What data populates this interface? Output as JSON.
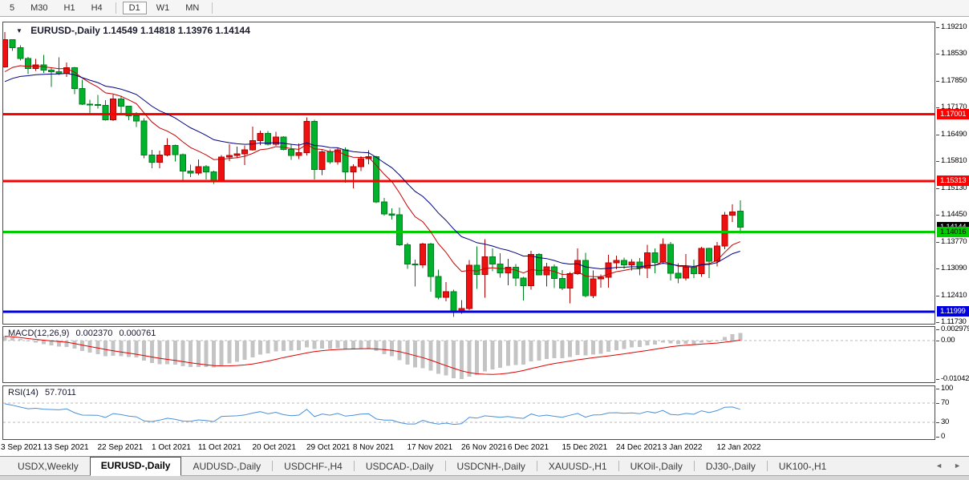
{
  "toolbar": {
    "periods": [
      {
        "label": "5"
      },
      {
        "label": "M30"
      },
      {
        "label": "H1"
      },
      {
        "label": "H4"
      },
      {
        "divider": true
      },
      {
        "label": "D1",
        "active": true
      },
      {
        "label": "W1"
      },
      {
        "label": "MN"
      },
      {
        "divider": true
      }
    ]
  },
  "window": {
    "title": {
      "symbol_period": "EURUSD-,Daily",
      "open": "1.14549",
      "high": "1.14818",
      "low": "1.13976",
      "close": "1.14144"
    }
  },
  "chart_data": {
    "type": "candlestick",
    "symbol": "EURUSD-,Daily",
    "ylim": [
      1.11691,
      1.19332
    ],
    "bar_spacing": 9.65,
    "colors": {
      "bull": "#ee1111",
      "bull_edge": "#b00000",
      "bear": "#00b22c",
      "bear_edge": "#007d1e",
      "ma_fast": "#c80000",
      "ma_slow": "#000080"
    },
    "candles": [
      [
        1.1821,
        1.1909,
        1.1818,
        1.189
      ],
      [
        1.189,
        1.1891,
        1.1861,
        1.1869
      ],
      [
        1.1869,
        1.1875,
        1.1837,
        1.1842
      ],
      [
        1.1842,
        1.1846,
        1.1802,
        1.1816
      ],
      [
        1.1816,
        1.1841,
        1.181,
        1.1825
      ],
      [
        1.1825,
        1.1851,
        1.1805,
        1.1812
      ],
      [
        1.1812,
        1.1818,
        1.177,
        1.1808
      ],
      [
        1.1808,
        1.1845,
        1.18,
        1.1804
      ],
      [
        1.1804,
        1.1832,
        1.1795,
        1.1818
      ],
      [
        1.1818,
        1.182,
        1.1751,
        1.1766
      ],
      [
        1.1766,
        1.1788,
        1.1724,
        1.1726
      ],
      [
        1.1726,
        1.1737,
        1.17,
        1.1725
      ],
      [
        1.1725,
        1.1749,
        1.1715,
        1.1723
      ],
      [
        1.1723,
        1.1736,
        1.1684,
        1.1686
      ],
      [
        1.1686,
        1.175,
        1.1683,
        1.1739
      ],
      [
        1.1739,
        1.1747,
        1.1701,
        1.1721
      ],
      [
        1.1721,
        1.1722,
        1.1685,
        1.1696
      ],
      [
        1.1696,
        1.1706,
        1.1668,
        1.1683
      ],
      [
        1.1683,
        1.169,
        1.1589,
        1.1597
      ],
      [
        1.1597,
        1.161,
        1.1563,
        1.1579
      ],
      [
        1.1579,
        1.1608,
        1.1563,
        1.1597
      ],
      [
        1.1597,
        1.164,
        1.1594,
        1.1621
      ],
      [
        1.1621,
        1.1623,
        1.1581,
        1.1598
      ],
      [
        1.1598,
        1.1601,
        1.1529,
        1.1556
      ],
      [
        1.1556,
        1.1572,
        1.1541,
        1.1551
      ],
      [
        1.1551,
        1.1586,
        1.1546,
        1.1567
      ],
      [
        1.1567,
        1.1571,
        1.1535,
        1.1554
      ],
      [
        1.1554,
        1.1557,
        1.1524,
        1.1531
      ],
      [
        1.1531,
        1.1597,
        1.1528,
        1.1592
      ],
      [
        1.1592,
        1.1624,
        1.1582,
        1.1596
      ],
      [
        1.1596,
        1.1618,
        1.1589,
        1.16
      ],
      [
        1.16,
        1.1621,
        1.1571,
        1.161
      ],
      [
        1.161,
        1.1669,
        1.1608,
        1.1633
      ],
      [
        1.1633,
        1.1659,
        1.1622,
        1.1652
      ],
      [
        1.1652,
        1.1658,
        1.1621,
        1.1624
      ],
      [
        1.1624,
        1.1656,
        1.162,
        1.1643
      ],
      [
        1.1643,
        1.1645,
        1.1609,
        1.1611
      ],
      [
        1.1611,
        1.1625,
        1.1585,
        1.1596
      ],
      [
        1.1596,
        1.1626,
        1.1587,
        1.1603
      ],
      [
        1.1603,
        1.1692,
        1.1596,
        1.1682
      ],
      [
        1.1682,
        1.1686,
        1.1535,
        1.156
      ],
      [
        1.156,
        1.1609,
        1.1546,
        1.1605
      ],
      [
        1.1605,
        1.1611,
        1.1575,
        1.158
      ],
      [
        1.158,
        1.1616,
        1.1572,
        1.161
      ],
      [
        1.161,
        1.1616,
        1.1527,
        1.1554
      ],
      [
        1.1554,
        1.1573,
        1.1513,
        1.1567
      ],
      [
        1.1567,
        1.1594,
        1.1556,
        1.1588
      ],
      [
        1.1588,
        1.1609,
        1.1574,
        1.1593
      ],
      [
        1.1593,
        1.1595,
        1.1475,
        1.1478
      ],
      [
        1.1478,
        1.1488,
        1.1443,
        1.1448
      ],
      [
        1.1448,
        1.1462,
        1.1433,
        1.1445
      ],
      [
        1.1445,
        1.1464,
        1.1366,
        1.1369
      ],
      [
        1.1369,
        1.1374,
        1.1308,
        1.132
      ],
      [
        1.132,
        1.1332,
        1.1264,
        1.1318
      ],
      [
        1.1318,
        1.1374,
        1.131,
        1.1371
      ],
      [
        1.1371,
        1.1374,
        1.125,
        1.1289
      ],
      [
        1.1289,
        1.1306,
        1.1231,
        1.1236
      ],
      [
        1.1236,
        1.1275,
        1.1226,
        1.125
      ],
      [
        1.125,
        1.1255,
        1.1186,
        1.1199
      ],
      [
        1.1199,
        1.1229,
        1.1194,
        1.1208
      ],
      [
        1.1208,
        1.1331,
        1.1204,
        1.1317
      ],
      [
        1.1317,
        1.1365,
        1.1258,
        1.1294
      ],
      [
        1.1294,
        1.1383,
        1.1235,
        1.1339
      ],
      [
        1.1339,
        1.136,
        1.1302,
        1.132
      ],
      [
        1.132,
        1.1348,
        1.1286,
        1.1298
      ],
      [
        1.1298,
        1.1334,
        1.1267,
        1.1312
      ],
      [
        1.1312,
        1.132,
        1.1265,
        1.1285
      ],
      [
        1.1285,
        1.1288,
        1.1228,
        1.1266
      ],
      [
        1.1266,
        1.1354,
        1.1255,
        1.1345
      ],
      [
        1.1345,
        1.1348,
        1.1292,
        1.1293
      ],
      [
        1.1293,
        1.1324,
        1.1264,
        1.1313
      ],
      [
        1.1313,
        1.1319,
        1.126,
        1.1284
      ],
      [
        1.1284,
        1.1305,
        1.1254,
        1.126
      ],
      [
        1.126,
        1.13,
        1.1221,
        1.1296
      ],
      [
        1.1296,
        1.136,
        1.1293,
        1.133
      ],
      [
        1.133,
        1.1349,
        1.1236,
        1.124
      ],
      [
        1.124,
        1.1304,
        1.1234,
        1.1283
      ],
      [
        1.1283,
        1.1294,
        1.1261,
        1.1287
      ],
      [
        1.1287,
        1.1344,
        1.1261,
        1.1324
      ],
      [
        1.1324,
        1.1342,
        1.1307,
        1.133
      ],
      [
        1.133,
        1.1337,
        1.1308,
        1.1318
      ],
      [
        1.1318,
        1.1333,
        1.1304,
        1.1326
      ],
      [
        1.1326,
        1.1336,
        1.1292,
        1.131
      ],
      [
        1.131,
        1.1369,
        1.1285,
        1.1349
      ],
      [
        1.1349,
        1.136,
        1.1297,
        1.1325
      ],
      [
        1.1325,
        1.1386,
        1.1321,
        1.137
      ],
      [
        1.137,
        1.1376,
        1.1279,
        1.1297
      ],
      [
        1.1297,
        1.1323,
        1.1272,
        1.1285
      ],
      [
        1.1285,
        1.1346,
        1.1279,
        1.1312
      ],
      [
        1.1312,
        1.1332,
        1.1285,
        1.1296
      ],
      [
        1.1296,
        1.1364,
        1.1288,
        1.136
      ],
      [
        1.136,
        1.1362,
        1.1285,
        1.1328
      ],
      [
        1.1328,
        1.1376,
        1.1314,
        1.1366
      ],
      [
        1.1366,
        1.1453,
        1.1358,
        1.1444
      ],
      [
        1.1444,
        1.1472,
        1.1427,
        1.1453
      ],
      [
        1.14549,
        1.14818,
        1.13976,
        1.14144
      ]
    ],
    "moving_averages": [
      {
        "period": 10,
        "seed": 1.179,
        "color": "#c80000"
      },
      {
        "period": 20,
        "seed": 1.1772,
        "color": "#000080"
      }
    ],
    "hlines": [
      {
        "price": 1.17001,
        "color": "#ff0000",
        "width": 3
      },
      {
        "price": 1.15313,
        "color": "#ff0000",
        "width": 3
      },
      {
        "price": 1.14016,
        "color": "#00cc00",
        "width": 3
      },
      {
        "price": 1.11999,
        "color": "#0000dd",
        "width": 3
      }
    ],
    "axis_boxes": [
      {
        "value": 1.17001,
        "text": "1.17001",
        "bg": "#ff0000",
        "fg": "#ffffff"
      },
      {
        "value": 1.15313,
        "text": "1.15313",
        "bg": "#ff0000",
        "fg": "#ffffff"
      },
      {
        "value": 1.14144,
        "text": "1.14144",
        "bg": "#000000",
        "fg": "#ffffff"
      },
      {
        "value": 1.14016,
        "text": "1.14016",
        "bg": "#00cc00",
        "fg": "#000000"
      },
      {
        "value": 1.11999,
        "text": "1.11999",
        "bg": "#0000dd",
        "fg": "#ffffff"
      }
    ],
    "price_axis_ticks": [
      1.1921,
      1.1853,
      1.1785,
      1.1717,
      1.1649,
      1.1581,
      1.1513,
      1.1445,
      1.1377,
      1.1309,
      1.1241,
      1.1173
    ],
    "date_labels": [
      {
        "text": "3 Sep 2021",
        "bar": 0
      },
      {
        "text": "13 Sep 2021",
        "bar": 6
      },
      {
        "text": "22 Sep 2021",
        "bar": 13
      },
      {
        "text": "1 Oct 2021",
        "bar": 20
      },
      {
        "text": "11 Oct 2021",
        "bar": 26
      },
      {
        "text": "20 Oct 2021",
        "bar": 33
      },
      {
        "text": "29 Oct 2021",
        "bar": 40
      },
      {
        "text": "8 Nov 2021",
        "bar": 46
      },
      {
        "text": "17 Nov 2021",
        "bar": 53
      },
      {
        "text": "26 Nov 2021",
        "bar": 60
      },
      {
        "text": "6 Dec 2021",
        "bar": 66
      },
      {
        "text": "15 Dec 2021",
        "bar": 73
      },
      {
        "text": "24 Dec 2021",
        "bar": 80
      },
      {
        "text": "3 Jan 2022",
        "bar": 86
      },
      {
        "text": "12 Jan 2022",
        "bar": 93
      }
    ],
    "macd": {
      "label": "MACD(12,26,9)",
      "value_main": "0.002370",
      "value_signal": "0.000761",
      "fast": 12,
      "slow": 26,
      "signal_period": 9,
      "seed_fast": 1.19,
      "seed_slow": 1.1887,
      "hist_color": "#c4c4c4",
      "signal_color": "#e00000",
      "axis": {
        "max": 0.002979,
        "min": -0.010422,
        "max_label": "0.002979",
        "zero_label": "0.00",
        "min_label": "-0.010422"
      }
    },
    "rsi": {
      "label": "RSI(14)",
      "value": "57.7011",
      "period": 14,
      "seed_gain": 0.0026,
      "seed_loss": 0.0012,
      "levels": [
        70,
        30
      ],
      "axis_labels": [
        100,
        70,
        30,
        0
      ],
      "color": "#4a90d9",
      "range": [
        0,
        100
      ]
    }
  },
  "tabs": {
    "items": [
      {
        "label": "USDX,Weekly"
      },
      {
        "label": "EURUSD-,Daily",
        "active": true
      },
      {
        "label": "AUDUSD-,Daily"
      },
      {
        "label": "USDCHF-,H4"
      },
      {
        "label": "USDCAD-,Daily"
      },
      {
        "label": "USDCNH-,Daily"
      },
      {
        "label": "XAUUSD-,H1"
      },
      {
        "label": "UKOil-,Daily"
      },
      {
        "label": "DJ30-,Daily"
      },
      {
        "label": "UK100-,H1"
      }
    ],
    "scroll_left": "◄",
    "scroll_right": "►"
  }
}
